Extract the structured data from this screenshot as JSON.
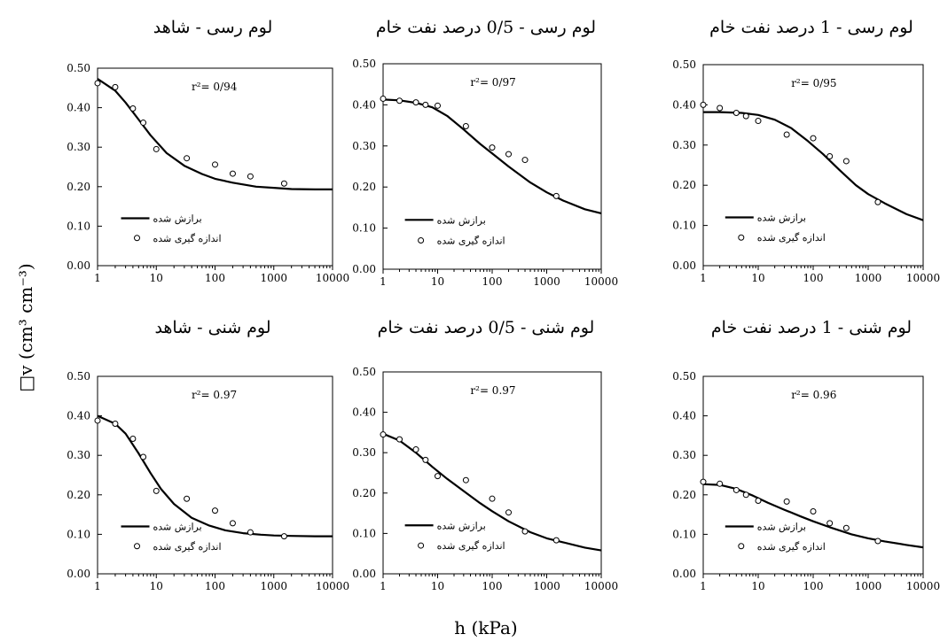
{
  "figure": {
    "ylabel": "□v (cm³ cm⁻³)",
    "xlabel": "h (kPa)"
  },
  "chart_data": [
    {
      "type": "scatter",
      "title": "لوم رسی - شاهد",
      "r2": "r²= 0/94",
      "xscale": "log",
      "xlim": [
        1,
        10000
      ],
      "ylim": [
        0,
        0.5
      ],
      "xticks": [
        "1",
        "10",
        "100",
        "1000",
        "10000"
      ],
      "yticks": [
        "0.00",
        "0.10",
        "0.20",
        "0.30",
        "0.40",
        "0.50"
      ],
      "legend": {
        "fitted": "برازش شده",
        "measured": "اندازه گیری شده"
      },
      "measured": {
        "x": [
          1,
          2,
          4,
          6,
          10,
          33,
          100,
          200,
          400,
          1500
        ],
        "y": [
          0.462,
          0.452,
          0.398,
          0.362,
          0.295,
          0.272,
          0.256,
          0.233,
          0.226,
          0.208
        ]
      },
      "fitted": {
        "x": [
          1,
          2,
          3,
          5,
          8,
          15,
          30,
          60,
          100,
          200,
          500,
          1000,
          2000,
          5000,
          10000
        ],
        "y": [
          0.473,
          0.443,
          0.413,
          0.37,
          0.33,
          0.285,
          0.253,
          0.232,
          0.22,
          0.21,
          0.2,
          0.197,
          0.194,
          0.193,
          0.193
        ]
      }
    },
    {
      "type": "scatter",
      "title": "لوم رسی - 0/5 درصد نفت خام",
      "r2": "r²= 0/97",
      "xscale": "log",
      "xlim": [
        1,
        10000
      ],
      "ylim": [
        0,
        0.5
      ],
      "xticks": [
        "1",
        "10",
        "100",
        "1000",
        "10000"
      ],
      "yticks": [
        "0.00",
        "0.10",
        "0.20",
        "0.30",
        "0.40",
        "0.50"
      ],
      "legend": {
        "fitted": "برازش شده",
        "measured": "اندازه گیری شده"
      },
      "measured": {
        "x": [
          1,
          2,
          4,
          6,
          10,
          33,
          100,
          200,
          400,
          1500
        ],
        "y": [
          0.415,
          0.41,
          0.406,
          0.4,
          0.398,
          0.348,
          0.296,
          0.28,
          0.266,
          0.178
        ]
      },
      "fitted": {
        "x": [
          1,
          2,
          4,
          8,
          15,
          30,
          60,
          100,
          200,
          500,
          1000,
          2000,
          5000,
          10000
        ],
        "y": [
          0.413,
          0.411,
          0.405,
          0.394,
          0.373,
          0.34,
          0.305,
          0.282,
          0.25,
          0.211,
          0.187,
          0.167,
          0.146,
          0.136
        ]
      }
    },
    {
      "type": "scatter",
      "title": "لوم رسی - 1 درصد نفت خام",
      "r2": "r²= 0/95",
      "xscale": "log",
      "xlim": [
        1,
        10000
      ],
      "ylim": [
        0,
        0.5
      ],
      "xticks": [
        "1",
        "10",
        "100",
        "1000",
        "10000"
      ],
      "yticks": [
        "0.00",
        "0.10",
        "0.20",
        "0.30",
        "0.40",
        "0.50"
      ],
      "legend": {
        "fitted": "برازش شده",
        "measured": "اندازه گیری شده"
      },
      "measured": {
        "x": [
          1,
          2,
          4,
          6,
          10,
          33,
          100,
          200,
          400,
          1500
        ],
        "y": [
          0.4,
          0.392,
          0.38,
          0.372,
          0.36,
          0.326,
          0.317,
          0.272,
          0.26,
          0.158
        ]
      },
      "fitted": {
        "x": [
          1,
          2,
          5,
          10,
          20,
          40,
          80,
          150,
          300,
          600,
          1000,
          2000,
          5000,
          10000
        ],
        "y": [
          0.382,
          0.382,
          0.38,
          0.375,
          0.363,
          0.342,
          0.31,
          0.278,
          0.238,
          0.2,
          0.178,
          0.155,
          0.128,
          0.113
        ]
      }
    },
    {
      "type": "scatter",
      "title": "لوم شنی - شاهد",
      "r2": "r²= 0.97",
      "xscale": "log",
      "xlim": [
        1,
        10000
      ],
      "ylim": [
        0,
        0.5
      ],
      "xticks": [
        "1",
        "10",
        "100",
        "1000",
        "10000"
      ],
      "yticks": [
        "0.00",
        "0.10",
        "0.20",
        "0.30",
        "0.40",
        "0.50"
      ],
      "legend": {
        "fitted": "برازش شده",
        "measured": "اندازه گیری شده"
      },
      "measured": {
        "x": [
          1,
          2,
          4,
          6,
          10,
          33,
          100,
          200,
          400,
          1500
        ],
        "y": [
          0.388,
          0.38,
          0.342,
          0.296,
          0.21,
          0.19,
          0.16,
          0.128,
          0.105,
          0.095
        ]
      },
      "fitted": {
        "x": [
          1,
          2,
          3,
          5,
          8,
          12,
          20,
          40,
          80,
          150,
          300,
          600,
          1000,
          2000,
          5000,
          10000
        ],
        "y": [
          0.4,
          0.38,
          0.355,
          0.305,
          0.255,
          0.215,
          0.177,
          0.142,
          0.122,
          0.11,
          0.103,
          0.099,
          0.097,
          0.096,
          0.095,
          0.095
        ]
      }
    },
    {
      "type": "scatter",
      "title": "لوم شنی - 0/5 درصد نفت خام",
      "r2": "r²= 0.97",
      "xscale": "log",
      "xlim": [
        1,
        10000
      ],
      "ylim": [
        0,
        0.5
      ],
      "xticks": [
        "1",
        "10",
        "100",
        "1000",
        "10000"
      ],
      "yticks": [
        "0.00",
        "0.10",
        "0.20",
        "0.30",
        "0.40",
        "0.50"
      ],
      "legend": {
        "fitted": "برازش شده",
        "measured": "اندازه گیری شده"
      },
      "measured": {
        "x": [
          1,
          2,
          4,
          6,
          10,
          33,
          100,
          200,
          400,
          1500
        ],
        "y": [
          0.345,
          0.333,
          0.308,
          0.282,
          0.242,
          0.232,
          0.186,
          0.152,
          0.105,
          0.083
        ]
      },
      "fitted": {
        "x": [
          1,
          2,
          4,
          8,
          15,
          30,
          60,
          100,
          200,
          500,
          1000,
          2000,
          5000,
          10000
        ],
        "y": [
          0.347,
          0.33,
          0.3,
          0.265,
          0.235,
          0.205,
          0.175,
          0.155,
          0.13,
          0.103,
          0.088,
          0.078,
          0.065,
          0.058
        ]
      }
    },
    {
      "type": "scatter",
      "title": "لوم شنی - 1 درصد نفت خام",
      "r2": "r²= 0.96",
      "xscale": "log",
      "xlim": [
        1,
        10000
      ],
      "ylim": [
        0,
        0.5
      ],
      "xticks": [
        "1",
        "10",
        "100",
        "1000",
        "10000"
      ],
      "yticks": [
        "0.00",
        "0.10",
        "0.20",
        "0.30",
        "0.40",
        "0.50"
      ],
      "legend": {
        "fitted": "برازش شده",
        "measured": "اندازه گیری شده"
      },
      "measured": {
        "x": [
          1,
          2,
          4,
          6,
          10,
          33,
          100,
          200,
          400,
          1500
        ],
        "y": [
          0.233,
          0.228,
          0.212,
          0.2,
          0.185,
          0.183,
          0.158,
          0.128,
          0.116,
          0.083
        ]
      },
      "fitted": {
        "x": [
          1,
          2,
          4,
          8,
          15,
          30,
          60,
          100,
          200,
          500,
          1000,
          2000,
          5000,
          10000
        ],
        "y": [
          0.227,
          0.225,
          0.215,
          0.198,
          0.18,
          0.162,
          0.145,
          0.133,
          0.118,
          0.1,
          0.09,
          0.082,
          0.073,
          0.067
        ]
      }
    }
  ]
}
